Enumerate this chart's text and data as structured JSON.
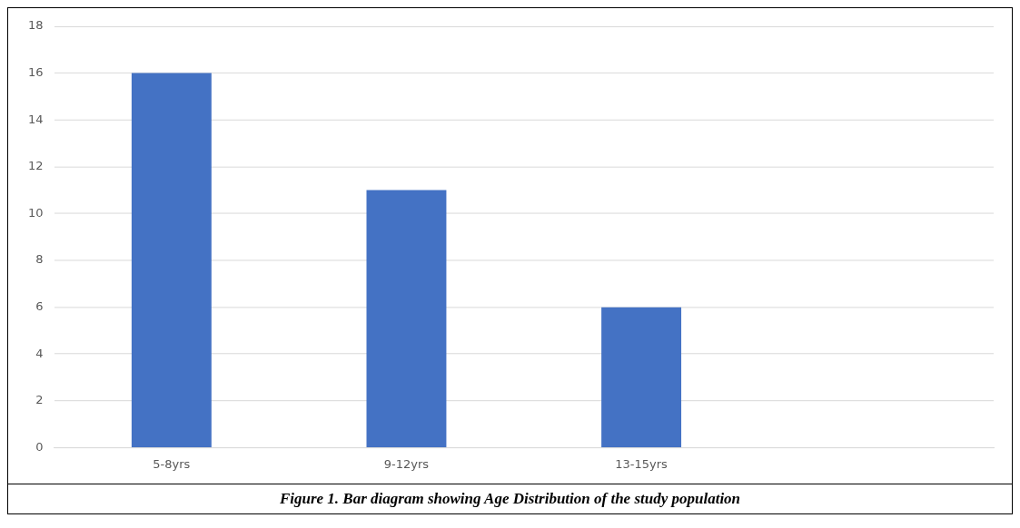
{
  "chart_data": {
    "type": "bar",
    "categories": [
      "5-8yrs",
      "9-12yrs",
      "13-15yrs",
      null
    ],
    "values": [
      16,
      11,
      6,
      null
    ],
    "color": "#4472c4",
    "ylim": [
      0,
      18
    ],
    "yticks": [
      0,
      2,
      4,
      6,
      8,
      10,
      12,
      14,
      16,
      18
    ],
    "grid": "y",
    "annotations": [
      "Figure 1. Bar diagram showing Age Distribution of the study population"
    ]
  }
}
